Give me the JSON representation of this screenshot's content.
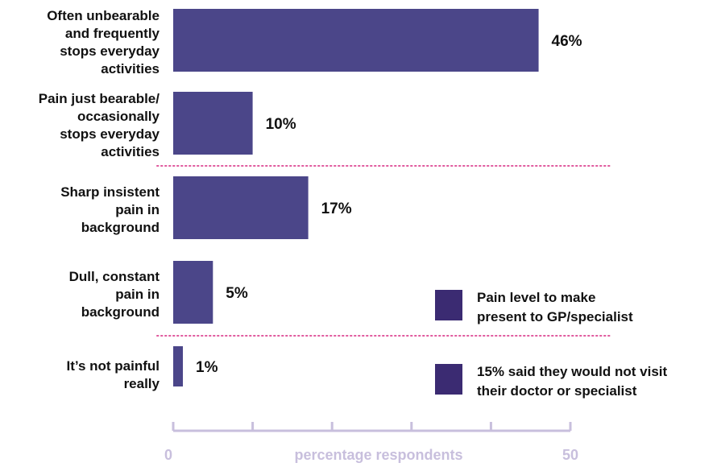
{
  "chart_data": {
    "type": "bar",
    "orientation": "horizontal",
    "categories": [
      [
        "Often unbearable",
        "and frequently",
        "stops everyday",
        "activities"
      ],
      [
        "Pain just bearable/",
        "occasionally",
        "stops everyday",
        "activities"
      ],
      [
        "Sharp insistent",
        "pain in",
        "background"
      ],
      [
        "Dull, constant",
        "pain in",
        "background"
      ],
      [
        "It’s not painful",
        "really"
      ]
    ],
    "values": [
      46,
      10,
      17,
      5,
      1
    ],
    "value_labels": [
      "46%",
      "10%",
      "17%",
      "5%",
      "1%"
    ],
    "xlabel": "percentage respondents",
    "xlim": [
      0,
      50
    ],
    "xtick_labels": [
      "0",
      "50"
    ],
    "group_separators_after": [
      1,
      3
    ],
    "legend": {
      "placement": "bottom-right",
      "items": [
        {
          "lines": [
            "Pain level to make",
            "present to GP/specialist"
          ],
          "color": "#3b2b72"
        },
        {
          "lines": [
            "15% said they would not visit",
            "their doctor or specialist"
          ],
          "color": "#3b2b72"
        }
      ]
    },
    "colors": {
      "bar": "#4b4689",
      "axis": "#c8bfdd",
      "separator": "#e05a9e"
    }
  }
}
